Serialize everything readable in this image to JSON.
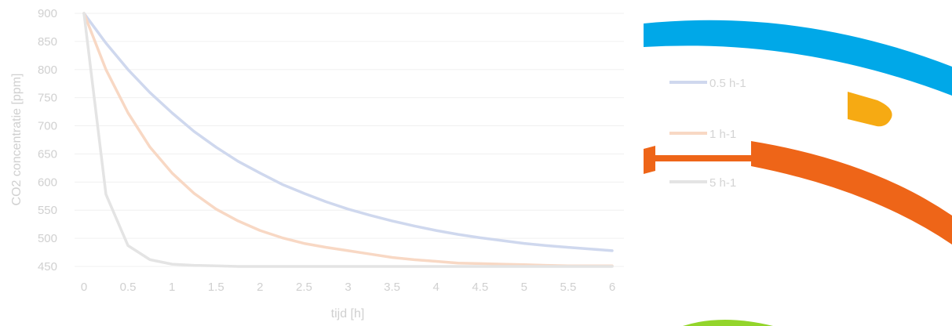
{
  "chart_data": {
    "type": "line",
    "xlabel": "tijd [h]",
    "ylabel": "CO2 concentratie [ppm]",
    "xlim": [
      0,
      6
    ],
    "ylim": [
      450,
      900
    ],
    "x_ticks": [
      "0",
      "0.5",
      "1",
      "1.5",
      "2",
      "2.5",
      "3",
      "3.5",
      "4",
      "4.5",
      "5",
      "5.5",
      "6"
    ],
    "y_ticks": [
      "450",
      "500",
      "550",
      "600",
      "650",
      "700",
      "750",
      "800",
      "850",
      "900"
    ],
    "grid": "horizontal",
    "legend_position": "right",
    "x": [
      0,
      0.25,
      0.5,
      0.75,
      1,
      1.25,
      1.5,
      1.75,
      2,
      2.25,
      2.5,
      2.75,
      3,
      3.25,
      3.5,
      3.75,
      4,
      4.25,
      4.5,
      4.75,
      5,
      5.25,
      5.5,
      5.75,
      6
    ],
    "series": [
      {
        "name": "0.5 h-1",
        "color": "#cfd8ee",
        "values": [
          900,
          847,
          800,
          759,
          723,
          690,
          662,
          637,
          616,
          596,
          580,
          565,
          552,
          541,
          531,
          522,
          514,
          507,
          501,
          496,
          491,
          487,
          484,
          481,
          478
        ]
      },
      {
        "name": "1 h-1",
        "color": "#f8d8c4",
        "values": [
          900,
          800,
          723,
          662,
          616,
          580,
          552,
          531,
          514,
          501,
          491,
          484,
          478,
          472,
          466,
          462,
          459,
          456,
          455,
          454,
          453,
          452,
          451,
          451,
          451
        ]
      },
      {
        "name": "5 h-1",
        "color": "#e4e4e4",
        "values": [
          900,
          578,
          487,
          462,
          454,
          452,
          451,
          450,
          450,
          450,
          450,
          450,
          450,
          450,
          450,
          450,
          450,
          450,
          450,
          450,
          450,
          450,
          450,
          450,
          450
        ]
      }
    ]
  },
  "decor": {
    "blue": "#00a8e8",
    "orange": "#ee6518",
    "yellow": "#f6aa13",
    "green": "#93d52b"
  }
}
